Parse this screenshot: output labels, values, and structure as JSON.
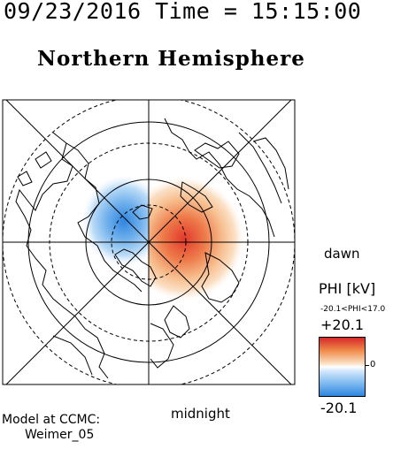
{
  "header": {
    "timestamp": "09/23/2016 Time = 15:15:00",
    "title": "Northern Hemisphere"
  },
  "map": {
    "orientation_labels": {
      "dawn": "dawn",
      "midnight": "midnight"
    },
    "grid": {
      "latitude_circles": true,
      "longitude_lines": true,
      "coastlines": true
    },
    "potential_pattern": {
      "dawn_side_cell": "positive (red)",
      "dusk_side_cell": "negative (blue)"
    }
  },
  "colorbar": {
    "label": "PHI [kV]",
    "range_text": "-20.1<PHI<17.0",
    "max_label": "+20.1",
    "zero_label": "0",
    "min_label": "-20.1",
    "colors": {
      "max": "#d62828",
      "zero": "#ffffff",
      "min": "#2f86e0"
    }
  },
  "model": {
    "line1": "Model at CCMC:",
    "line2": "Weimer_05"
  }
}
